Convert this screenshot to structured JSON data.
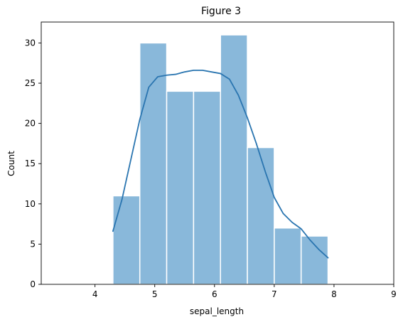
{
  "chart_data": {
    "type": "bar",
    "title": "Figure 3",
    "xlabel": "sepal_length",
    "ylabel": "Count",
    "bins": [
      {
        "start": 4.3,
        "end": 4.75,
        "count": 11
      },
      {
        "start": 4.75,
        "end": 5.2,
        "count": 30
      },
      {
        "start": 5.2,
        "end": 5.65,
        "count": 24
      },
      {
        "start": 5.65,
        "end": 6.1,
        "count": 24
      },
      {
        "start": 6.1,
        "end": 6.55,
        "count": 31
      },
      {
        "start": 6.55,
        "end": 7.0,
        "count": 17
      },
      {
        "start": 7.0,
        "end": 7.45,
        "count": 7
      },
      {
        "start": 7.45,
        "end": 7.9,
        "count": 6
      }
    ],
    "kde": {
      "name": "",
      "x": [
        4.3,
        4.45,
        4.6,
        4.75,
        4.9,
        5.05,
        5.2,
        5.35,
        5.5,
        5.65,
        5.8,
        5.95,
        6.1,
        6.25,
        6.4,
        6.55,
        6.7,
        6.85,
        7.0,
        7.15,
        7.3,
        7.45,
        7.6,
        7.75,
        7.9
      ],
      "y": [
        6.6,
        10.5,
        15.5,
        20.5,
        24.5,
        25.8,
        26.0,
        26.1,
        26.4,
        26.6,
        26.6,
        26.4,
        26.2,
        25.5,
        23.5,
        20.7,
        17.5,
        14.0,
        10.8,
        8.8,
        7.7,
        6.9,
        5.5,
        4.3,
        3.3
      ]
    },
    "xlim": [
      3.1,
      9.0
    ],
    "ylim": [
      0,
      32.6
    ],
    "xticks": [
      4,
      5,
      6,
      7,
      8,
      9
    ],
    "yticks": [
      0,
      5,
      10,
      15,
      20,
      25,
      30
    ],
    "grid": false,
    "colors": {
      "bar_fill": "#89b8da",
      "bar_edge": "#ffffff",
      "line": "#2a75b0",
      "axis": "#000000"
    }
  }
}
